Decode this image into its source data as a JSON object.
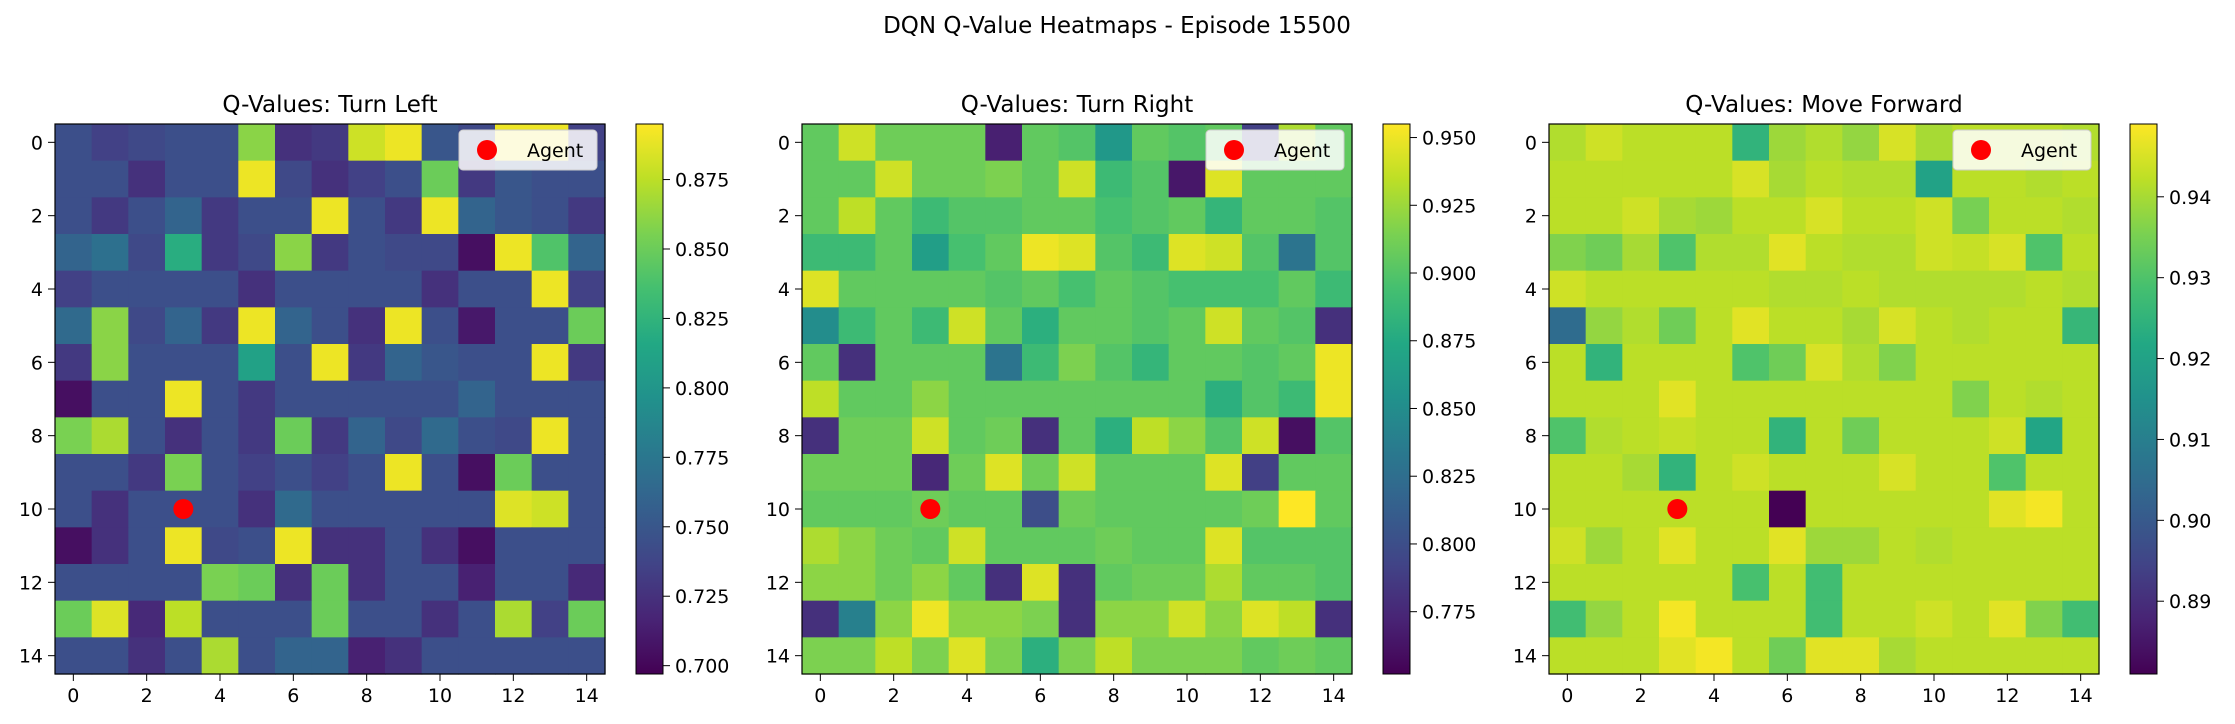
{
  "suptitle": "DQN Q-Value Heatmaps - Episode 15500",
  "chart_data": [
    {
      "type": "heatmap",
      "title": "Q-Values: Turn Left",
      "colormap": "viridis",
      "rows": 15,
      "cols": 15,
      "xticks": [
        0,
        2,
        4,
        6,
        8,
        10,
        12,
        14
      ],
      "yticks": [
        0,
        2,
        4,
        6,
        8,
        10,
        12,
        14
      ],
      "vmin": 0.697,
      "vmax": 0.895,
      "colorbar_ticks": [
        0.7,
        0.725,
        0.75,
        0.775,
        0.8,
        0.825,
        0.85,
        0.875
      ],
      "colorbar_tick_labels": [
        "0.700",
        "0.725",
        "0.750",
        "0.775",
        "0.800",
        "0.825",
        "0.850",
        "0.875"
      ],
      "legend": {
        "label": "Agent",
        "position": "top-right",
        "marker_color": "#ff0000"
      },
      "agent": {
        "x": 3,
        "y": 10
      },
      "values": [
        [
          0.745,
          0.735,
          0.74,
          0.745,
          0.745,
          0.86,
          0.725,
          0.73,
          0.88,
          0.89,
          0.75,
          0.74,
          0.89,
          0.89,
          0.735
        ],
        [
          0.745,
          0.745,
          0.725,
          0.745,
          0.745,
          0.89,
          0.74,
          0.725,
          0.735,
          0.745,
          0.85,
          0.73,
          0.75,
          0.745,
          0.745
        ],
        [
          0.745,
          0.73,
          0.745,
          0.76,
          0.73,
          0.745,
          0.745,
          0.89,
          0.745,
          0.73,
          0.89,
          0.76,
          0.75,
          0.745,
          0.73
        ],
        [
          0.76,
          0.77,
          0.74,
          0.82,
          0.73,
          0.74,
          0.86,
          0.73,
          0.745,
          0.74,
          0.74,
          0.705,
          0.89,
          0.84,
          0.76
        ],
        [
          0.735,
          0.745,
          0.745,
          0.745,
          0.745,
          0.725,
          0.745,
          0.745,
          0.745,
          0.745,
          0.725,
          0.745,
          0.745,
          0.89,
          0.735
        ],
        [
          0.765,
          0.86,
          0.74,
          0.76,
          0.73,
          0.89,
          0.76,
          0.745,
          0.725,
          0.89,
          0.745,
          0.71,
          0.745,
          0.745,
          0.85
        ],
        [
          0.73,
          0.86,
          0.745,
          0.745,
          0.745,
          0.81,
          0.745,
          0.89,
          0.73,
          0.76,
          0.75,
          0.745,
          0.745,
          0.89,
          0.73
        ],
        [
          0.705,
          0.745,
          0.745,
          0.89,
          0.745,
          0.73,
          0.745,
          0.745,
          0.745,
          0.745,
          0.745,
          0.76,
          0.745,
          0.745,
          0.745
        ],
        [
          0.855,
          0.87,
          0.745,
          0.725,
          0.745,
          0.73,
          0.85,
          0.73,
          0.76,
          0.74,
          0.765,
          0.745,
          0.74,
          0.89,
          0.745
        ],
        [
          0.745,
          0.745,
          0.73,
          0.855,
          0.745,
          0.735,
          0.745,
          0.735,
          0.745,
          0.89,
          0.745,
          0.705,
          0.85,
          0.745,
          0.745
        ],
        [
          0.745,
          0.725,
          0.745,
          0.745,
          0.745,
          0.725,
          0.765,
          0.745,
          0.745,
          0.745,
          0.745,
          0.745,
          0.885,
          0.88,
          0.745
        ],
        [
          0.705,
          0.725,
          0.745,
          0.89,
          0.74,
          0.745,
          0.89,
          0.725,
          0.725,
          0.745,
          0.725,
          0.705,
          0.745,
          0.745,
          0.745
        ],
        [
          0.745,
          0.745,
          0.745,
          0.745,
          0.855,
          0.85,
          0.725,
          0.85,
          0.725,
          0.745,
          0.745,
          0.715,
          0.745,
          0.745,
          0.72
        ],
        [
          0.85,
          0.885,
          0.72,
          0.875,
          0.745,
          0.745,
          0.745,
          0.85,
          0.745,
          0.745,
          0.725,
          0.745,
          0.87,
          0.735,
          0.85
        ],
        [
          0.745,
          0.745,
          0.725,
          0.745,
          0.87,
          0.745,
          0.76,
          0.76,
          0.715,
          0.725,
          0.745,
          0.745,
          0.745,
          0.745,
          0.745
        ]
      ]
    },
    {
      "type": "heatmap",
      "title": "Q-Values: Turn Right",
      "colormap": "viridis",
      "rows": 15,
      "cols": 15,
      "xticks": [
        0,
        2,
        4,
        6,
        8,
        10,
        12,
        14
      ],
      "yticks": [
        0,
        2,
        4,
        6,
        8,
        10,
        12,
        14
      ],
      "vmin": 0.752,
      "vmax": 0.955,
      "colorbar_ticks": [
        0.775,
        0.8,
        0.825,
        0.85,
        0.875,
        0.9,
        0.925,
        0.95
      ],
      "colorbar_tick_labels": [
        "0.775",
        "0.800",
        "0.825",
        "0.850",
        "0.875",
        "0.900",
        "0.925",
        "0.950"
      ],
      "legend": {
        "label": "Agent",
        "position": "top-right",
        "marker_color": "#ff0000"
      },
      "agent": {
        "x": 3,
        "y": 10
      },
      "values": [
        [
          0.905,
          0.94,
          0.91,
          0.91,
          0.91,
          0.77,
          0.905,
          0.9,
          0.86,
          0.905,
          0.9,
          0.905,
          0.79,
          0.93,
          0.905
        ],
        [
          0.905,
          0.905,
          0.94,
          0.91,
          0.91,
          0.915,
          0.905,
          0.94,
          0.89,
          0.9,
          0.765,
          0.945,
          0.905,
          0.905,
          0.905
        ],
        [
          0.905,
          0.935,
          0.905,
          0.89,
          0.9,
          0.9,
          0.905,
          0.905,
          0.895,
          0.9,
          0.905,
          0.885,
          0.905,
          0.905,
          0.9
        ],
        [
          0.89,
          0.89,
          0.905,
          0.865,
          0.895,
          0.905,
          0.95,
          0.945,
          0.9,
          0.89,
          0.945,
          0.94,
          0.9,
          0.83,
          0.9
        ],
        [
          0.945,
          0.905,
          0.905,
          0.905,
          0.905,
          0.9,
          0.905,
          0.895,
          0.905,
          0.9,
          0.895,
          0.895,
          0.895,
          0.905,
          0.89
        ],
        [
          0.85,
          0.89,
          0.905,
          0.89,
          0.94,
          0.905,
          0.88,
          0.905,
          0.905,
          0.9,
          0.905,
          0.94,
          0.905,
          0.9,
          0.78
        ],
        [
          0.905,
          0.78,
          0.905,
          0.905,
          0.905,
          0.83,
          0.89,
          0.915,
          0.9,
          0.885,
          0.905,
          0.905,
          0.9,
          0.905,
          0.95
        ],
        [
          0.935,
          0.905,
          0.905,
          0.92,
          0.905,
          0.905,
          0.905,
          0.905,
          0.905,
          0.905,
          0.905,
          0.88,
          0.9,
          0.89,
          0.95
        ],
        [
          0.78,
          0.91,
          0.91,
          0.94,
          0.905,
          0.91,
          0.78,
          0.905,
          0.88,
          0.935,
          0.92,
          0.9,
          0.94,
          0.76,
          0.9
        ],
        [
          0.91,
          0.91,
          0.91,
          0.775,
          0.91,
          0.945,
          0.91,
          0.94,
          0.905,
          0.905,
          0.905,
          0.945,
          0.79,
          0.905,
          0.905
        ],
        [
          0.905,
          0.905,
          0.905,
          0.91,
          0.905,
          0.905,
          0.8,
          0.91,
          0.905,
          0.905,
          0.905,
          0.905,
          0.91,
          0.955,
          0.905
        ],
        [
          0.93,
          0.92,
          0.91,
          0.905,
          0.94,
          0.905,
          0.905,
          0.905,
          0.91,
          0.905,
          0.905,
          0.945,
          0.9,
          0.9,
          0.9
        ],
        [
          0.92,
          0.92,
          0.91,
          0.92,
          0.905,
          0.78,
          0.945,
          0.78,
          0.905,
          0.91,
          0.91,
          0.93,
          0.905,
          0.905,
          0.9
        ],
        [
          0.78,
          0.84,
          0.92,
          0.95,
          0.92,
          0.92,
          0.915,
          0.78,
          0.92,
          0.92,
          0.94,
          0.92,
          0.945,
          0.935,
          0.78
        ],
        [
          0.915,
          0.915,
          0.935,
          0.915,
          0.945,
          0.915,
          0.88,
          0.915,
          0.935,
          0.915,
          0.915,
          0.915,
          0.905,
          0.91,
          0.905
        ]
      ]
    },
    {
      "type": "heatmap",
      "title": "Q-Values: Move Forward",
      "colormap": "viridis",
      "rows": 15,
      "cols": 15,
      "xticks": [
        0,
        2,
        4,
        6,
        8,
        10,
        12,
        14
      ],
      "yticks": [
        0,
        2,
        4,
        6,
        8,
        10,
        12,
        14
      ],
      "vmin": 0.881,
      "vmax": 0.949,
      "colorbar_ticks": [
        0.89,
        0.9,
        0.91,
        0.92,
        0.93,
        0.94
      ],
      "colorbar_tick_labels": [
        "0.89",
        "0.90",
        "0.91",
        "0.92",
        "0.93",
        "0.94"
      ],
      "legend": {
        "label": "Agent",
        "position": "top-right",
        "marker_color": "#ff0000"
      },
      "agent": {
        "x": 3,
        "y": 10
      },
      "values": [
        [
          0.941,
          0.944,
          0.942,
          0.942,
          0.942,
          0.925,
          0.939,
          0.941,
          0.938,
          0.945,
          0.94,
          0.942,
          0.942,
          0.942,
          0.941
        ],
        [
          0.942,
          0.942,
          0.942,
          0.942,
          0.942,
          0.945,
          0.94,
          0.942,
          0.941,
          0.941,
          0.92,
          0.942,
          0.942,
          0.941,
          0.942
        ],
        [
          0.942,
          0.942,
          0.944,
          0.94,
          0.939,
          0.942,
          0.942,
          0.945,
          0.942,
          0.942,
          0.944,
          0.935,
          0.942,
          0.942,
          0.941
        ],
        [
          0.936,
          0.934,
          0.94,
          0.93,
          0.941,
          0.941,
          0.946,
          0.942,
          0.941,
          0.941,
          0.944,
          0.943,
          0.945,
          0.93,
          0.942
        ],
        [
          0.944,
          0.942,
          0.942,
          0.942,
          0.942,
          0.942,
          0.941,
          0.941,
          0.942,
          0.941,
          0.941,
          0.941,
          0.941,
          0.942,
          0.941
        ],
        [
          0.905,
          0.938,
          0.941,
          0.934,
          0.942,
          0.946,
          0.942,
          0.942,
          0.94,
          0.945,
          0.942,
          0.941,
          0.942,
          0.942,
          0.926
        ],
        [
          0.942,
          0.925,
          0.942,
          0.942,
          0.942,
          0.93,
          0.934,
          0.945,
          0.941,
          0.936,
          0.942,
          0.942,
          0.942,
          0.942,
          0.942
        ],
        [
          0.942,
          0.942,
          0.942,
          0.946,
          0.942,
          0.942,
          0.942,
          0.942,
          0.942,
          0.942,
          0.942,
          0.936,
          0.942,
          0.941,
          0.942
        ],
        [
          0.93,
          0.941,
          0.942,
          0.943,
          0.942,
          0.942,
          0.925,
          0.942,
          0.934,
          0.942,
          0.942,
          0.942,
          0.944,
          0.921,
          0.942
        ],
        [
          0.942,
          0.942,
          0.94,
          0.925,
          0.942,
          0.944,
          0.942,
          0.942,
          0.942,
          0.945,
          0.942,
          0.942,
          0.93,
          0.942,
          0.942
        ],
        [
          0.942,
          0.942,
          0.942,
          0.942,
          0.942,
          0.942,
          0.881,
          0.942,
          0.942,
          0.942,
          0.942,
          0.942,
          0.946,
          0.948,
          0.942
        ],
        [
          0.944,
          0.939,
          0.942,
          0.946,
          0.942,
          0.942,
          0.946,
          0.939,
          0.939,
          0.942,
          0.941,
          0.942,
          0.942,
          0.942,
          0.942
        ],
        [
          0.942,
          0.942,
          0.942,
          0.942,
          0.942,
          0.929,
          0.942,
          0.928,
          0.942,
          0.942,
          0.942,
          0.942,
          0.942,
          0.942,
          0.942
        ],
        [
          0.928,
          0.938,
          0.942,
          0.948,
          0.942,
          0.942,
          0.942,
          0.928,
          0.942,
          0.942,
          0.944,
          0.942,
          0.946,
          0.936,
          0.928
        ],
        [
          0.942,
          0.942,
          0.942,
          0.946,
          0.948,
          0.942,
          0.934,
          0.946,
          0.946,
          0.94,
          0.942,
          0.942,
          0.942,
          0.942,
          0.942
        ]
      ]
    }
  ]
}
